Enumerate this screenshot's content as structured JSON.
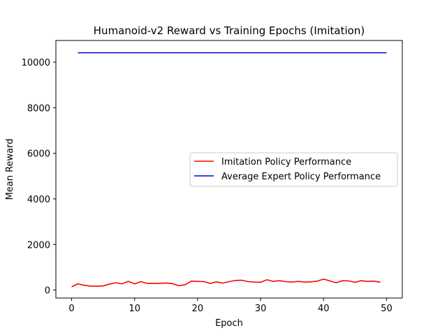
{
  "chart_data": {
    "type": "line",
    "title": "Humanoid-v2 Reward vs Training Epochs (Imitation)",
    "xlabel": "Epoch",
    "ylabel": "Mean Reward",
    "xlim": [
      -2.5,
      52.5
    ],
    "ylim": [
      -350,
      10950
    ],
    "xticks": [
      0,
      10,
      20,
      30,
      40,
      50
    ],
    "yticks": [
      0,
      2000,
      4000,
      6000,
      8000,
      10000
    ],
    "legend_position": "center-right",
    "series": [
      {
        "name": "Imitation Policy Performance",
        "color": "#ff0000",
        "x": [
          0,
          1,
          2,
          3,
          4,
          5,
          6,
          7,
          8,
          9,
          10,
          11,
          12,
          13,
          14,
          15,
          16,
          17,
          18,
          19,
          20,
          21,
          22,
          23,
          24,
          25,
          26,
          27,
          28,
          29,
          30,
          31,
          32,
          33,
          34,
          35,
          36,
          37,
          38,
          39,
          40,
          41,
          42,
          43,
          44,
          45,
          46,
          47,
          48,
          49
        ],
        "y": [
          140,
          270,
          210,
          170,
          170,
          180,
          260,
          320,
          270,
          380,
          270,
          370,
          290,
          290,
          290,
          310,
          280,
          190,
          230,
          390,
          380,
          370,
          290,
          360,
          300,
          370,
          420,
          430,
          370,
          350,
          340,
          450,
          380,
          410,
          370,
          350,
          380,
          350,
          360,
          390,
          480,
          400,
          320,
          410,
          400,
          340,
          410,
          380,
          390,
          340
        ]
      },
      {
        "name": "Average Expert Policy Performance",
        "color": "#0000cd",
        "x": [
          1,
          50
        ],
        "y": [
          10410,
          10410
        ]
      }
    ]
  }
}
